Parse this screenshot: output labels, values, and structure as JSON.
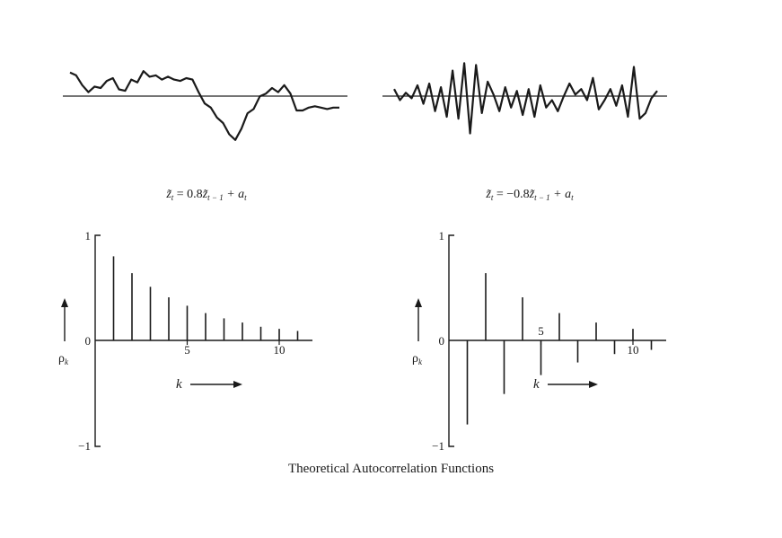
{
  "footer": "Theoretical Autocorrelation Functions",
  "chart_data": [
    {
      "type": "line",
      "panel": "series-left",
      "equation": {
        "lhs": "z̃",
        "lhs_sub": "t",
        "eq": " = 0.8",
        "rhs": "z̃",
        "rhs_sub": "t − 1",
        "plus": " + a",
        "plus_sub": "t"
      },
      "x": [
        0,
        1,
        2,
        3,
        4,
        5,
        6,
        7,
        8,
        9,
        10,
        11,
        12,
        13,
        14,
        15,
        16,
        17,
        18,
        19,
        20,
        21,
        22,
        23,
        24,
        25,
        26,
        27,
        28,
        29,
        30,
        31,
        32,
        33,
        34,
        35,
        36,
        37,
        38,
        39,
        40,
        41,
        42,
        43,
        44
      ],
      "values": [
        0.8,
        0.7,
        0.35,
        0.1,
        0.3,
        0.25,
        0.5,
        0.6,
        0.2,
        0.15,
        0.55,
        0.45,
        0.85,
        0.65,
        0.7,
        0.55,
        0.65,
        0.55,
        0.5,
        0.6,
        0.55,
        0.1,
        -0.3,
        -0.45,
        -0.8,
        -1.0,
        -1.4,
        -1.6,
        -1.2,
        -0.65,
        -0.5,
        -0.05,
        0.05,
        0.25,
        0.1,
        0.35,
        0.05,
        -0.55,
        -0.55,
        -0.45,
        -0.4,
        -0.45,
        -0.5,
        -0.45,
        -0.45
      ],
      "ylim": [
        -2,
        1.4
      ]
    },
    {
      "type": "line",
      "panel": "series-right",
      "equation": {
        "lhs": "z̃",
        "lhs_sub": "t",
        "eq": " =  −0.8",
        "rhs": "z̃",
        "rhs_sub": "t − 1",
        "plus": " + a",
        "plus_sub": "t"
      },
      "x": [
        0,
        1,
        2,
        3,
        4,
        5,
        6,
        7,
        8,
        9,
        10,
        11,
        12,
        13,
        14,
        15,
        16,
        17,
        18,
        19,
        20,
        21,
        22,
        23,
        24,
        25,
        26,
        27,
        28,
        29,
        30,
        31,
        32,
        33,
        34,
        35,
        36,
        37,
        38,
        39,
        40,
        41,
        42,
        43,
        44,
        45
      ],
      "values": [
        0.2,
        -0.1,
        0.1,
        -0.05,
        0.3,
        -0.2,
        0.35,
        -0.4,
        0.25,
        -0.55,
        0.7,
        -0.6,
        0.9,
        -1.0,
        0.85,
        -0.45,
        0.4,
        0.05,
        -0.4,
        0.25,
        -0.3,
        0.15,
        -0.5,
        0.2,
        -0.55,
        0.3,
        -0.3,
        -0.1,
        -0.4,
        0.0,
        0.35,
        0.05,
        0.2,
        -0.1,
        0.5,
        -0.35,
        -0.1,
        0.2,
        -0.25,
        0.3,
        -0.55,
        0.8,
        -0.6,
        -0.45,
        -0.05,
        0.15
      ],
      "ylim": [
        -1.4,
        1.2
      ]
    },
    {
      "type": "bar",
      "panel": "acf-left",
      "ylabel": "ρ",
      "ylabel_sub": "k",
      "xlabel": "k",
      "x": [
        1,
        2,
        3,
        4,
        5,
        6,
        7,
        8,
        9,
        10,
        11
      ],
      "values": [
        0.8,
        0.64,
        0.51,
        0.41,
        0.33,
        0.26,
        0.21,
        0.17,
        0.13,
        0.11,
        0.09
      ],
      "xticks": [
        5,
        10
      ],
      "xtick_labels": [
        "5",
        "10"
      ],
      "ylim": [
        -1,
        1
      ],
      "ytick_labels": {
        "top": "1",
        "zero": "0",
        "bottom": "−1"
      }
    },
    {
      "type": "bar",
      "panel": "acf-right",
      "ylabel": "ρ",
      "ylabel_sub": "k",
      "xlabel": "k",
      "x": [
        1,
        2,
        3,
        4,
        5,
        6,
        7,
        8,
        9,
        10,
        11
      ],
      "values": [
        -0.8,
        0.64,
        -0.51,
        0.41,
        -0.33,
        0.26,
        -0.21,
        0.17,
        -0.13,
        0.11,
        -0.09
      ],
      "xticks": [
        5,
        10
      ],
      "xtick_labels": [
        "5",
        "10"
      ],
      "ylim": [
        -1,
        1
      ],
      "ytick_labels": {
        "top": "1",
        "zero": "0",
        "bottom": "−1"
      }
    }
  ]
}
